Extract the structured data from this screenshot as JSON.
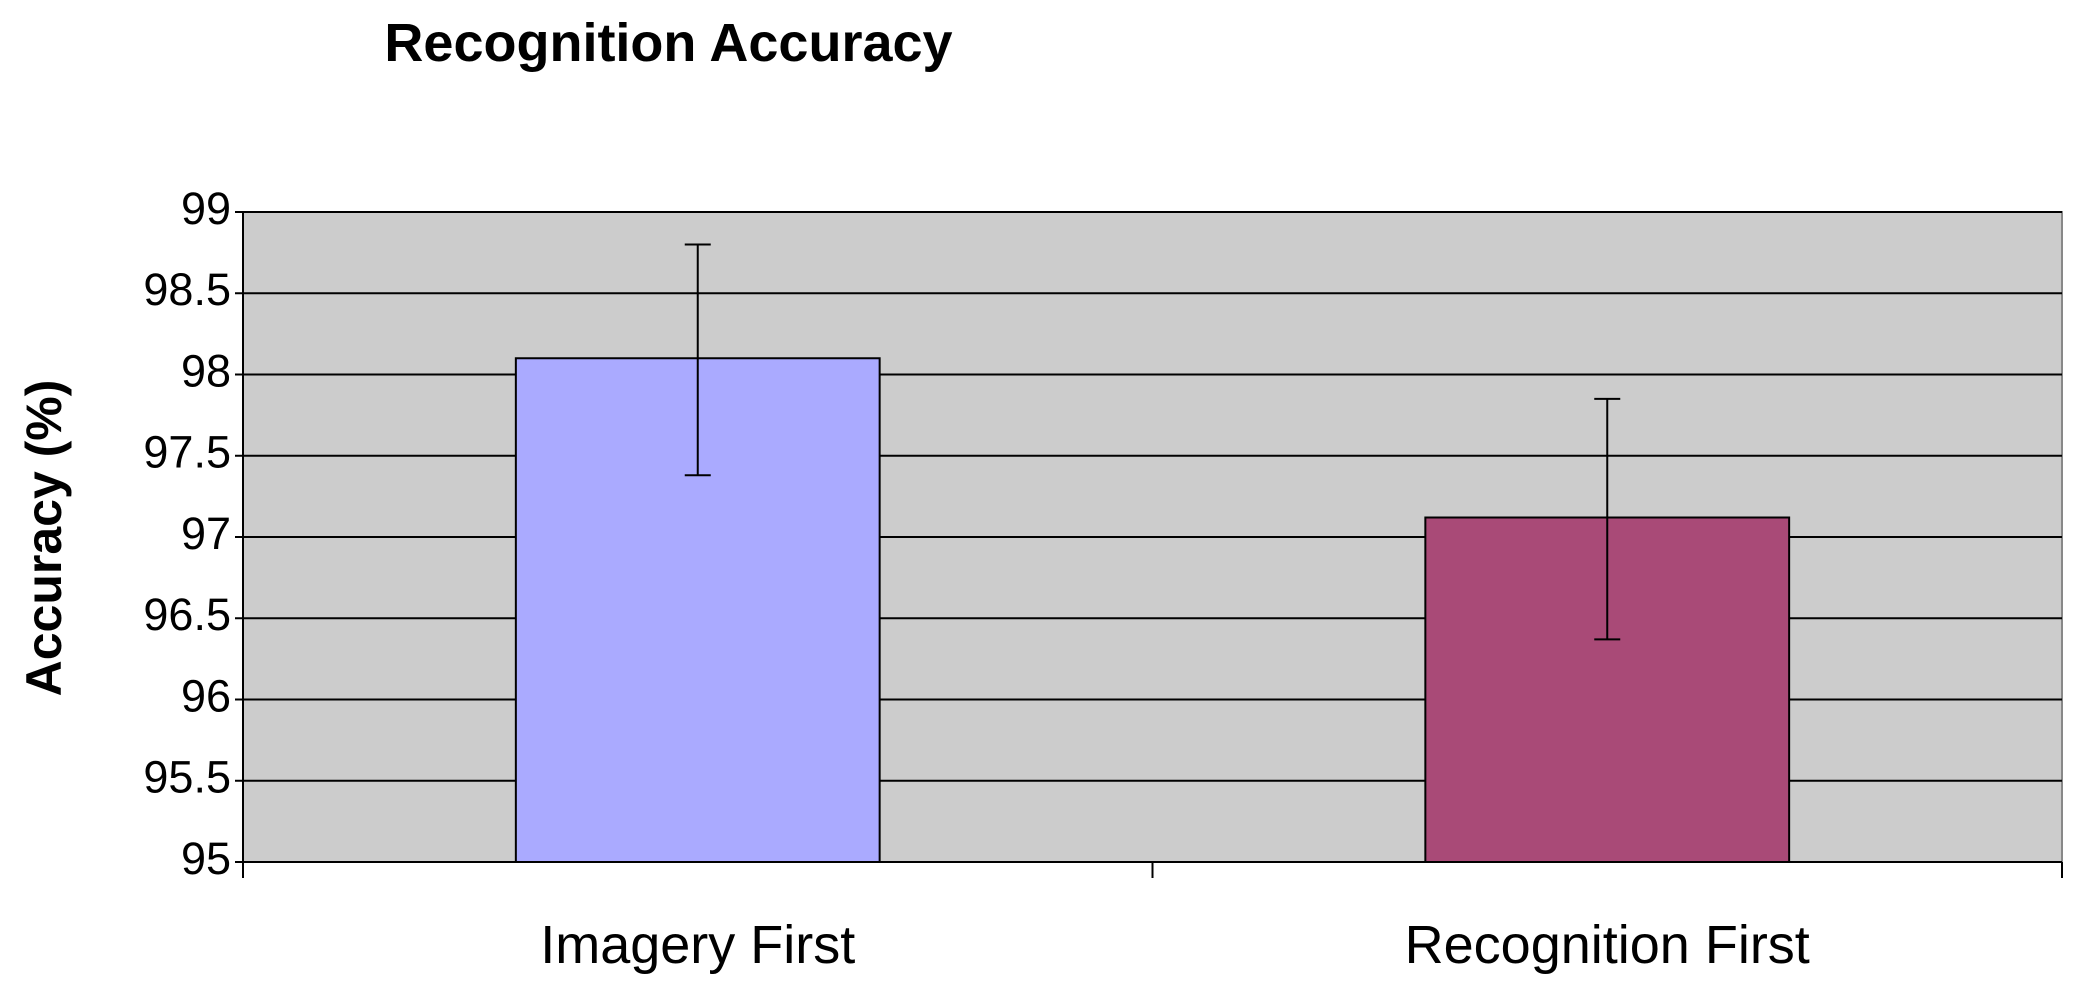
{
  "chart_data": {
    "type": "bar",
    "title": "Recognition Accuracy",
    "xlabel": "",
    "ylabel": "Accuracy (%)",
    "categories": [
      "Imagery First",
      "Recognition First"
    ],
    "values": [
      98.1,
      97.12
    ],
    "error_bars": [
      {
        "low": 97.38,
        "high": 98.8
      },
      {
        "low": 96.37,
        "high": 97.85
      }
    ],
    "colors": [
      "#aaaaff",
      "#a94a77"
    ],
    "ylim": [
      95,
      99
    ],
    "yticks": [
      "95",
      "95.5",
      "96",
      "96.5",
      "97",
      "97.5",
      "98",
      "98.5",
      "99"
    ],
    "grid": true,
    "plot_background": "#cccccc",
    "legend": "none"
  }
}
